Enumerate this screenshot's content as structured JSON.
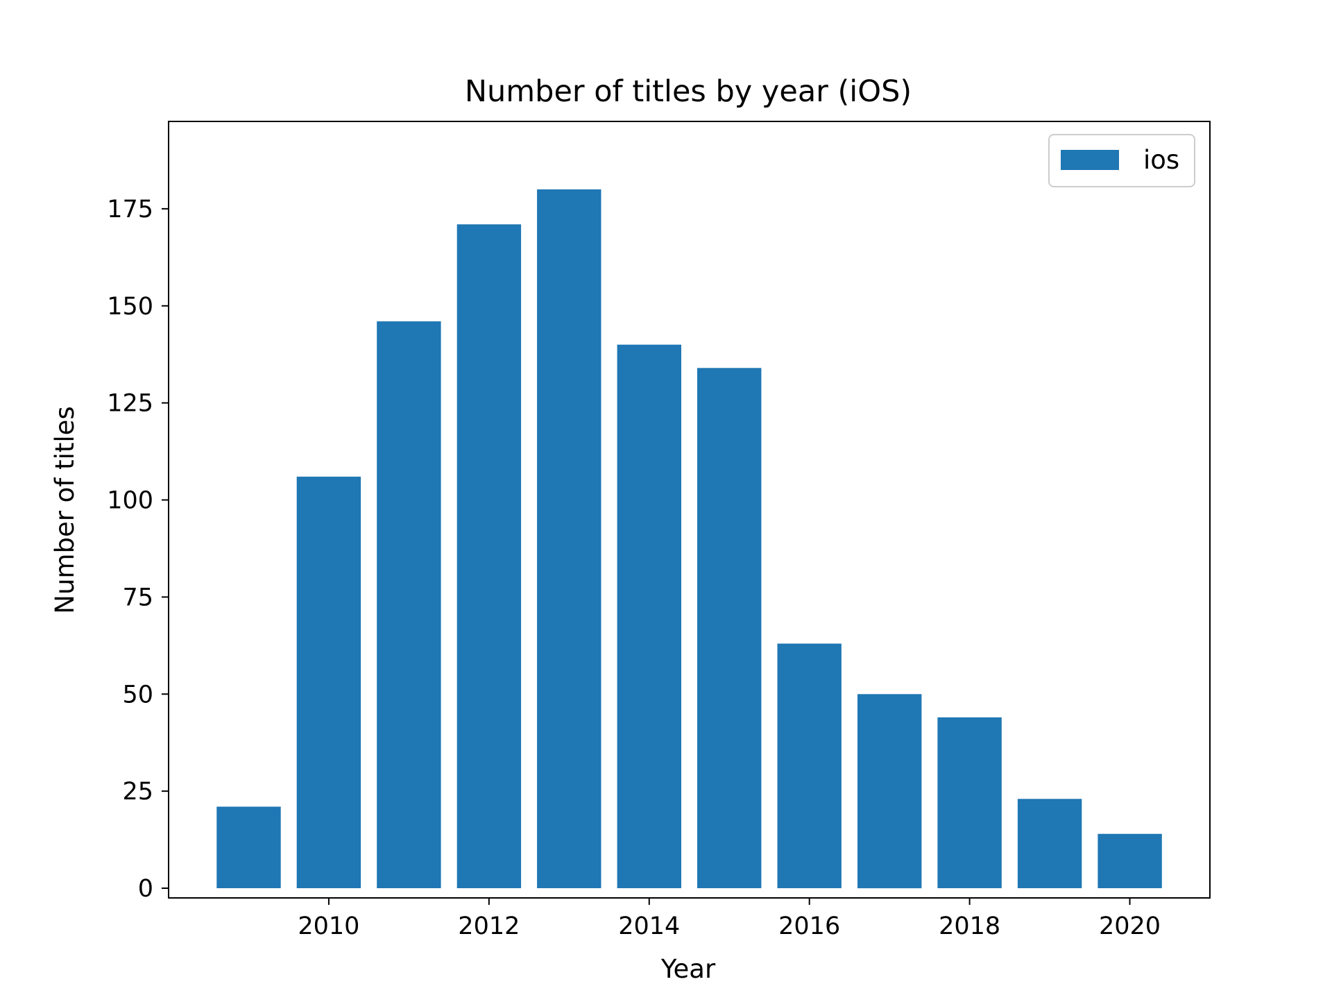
{
  "chart_data": {
    "type": "bar",
    "title": "Number of titles by year (iOS)",
    "xlabel": "Year",
    "ylabel": "Number of titles",
    "x": [
      2009,
      2010,
      2011,
      2012,
      2013,
      2014,
      2015,
      2016,
      2017,
      2018,
      2019,
      2020
    ],
    "series": [
      {
        "name": "ios",
        "color": "#1f77b4",
        "values": [
          21,
          106,
          146,
          171,
          180,
          140,
          134,
          63,
          50,
          44,
          23,
          14
        ]
      }
    ],
    "xlim": [
      2008.0,
      2021.0
    ],
    "ylim": [
      -2.5,
      197.5
    ],
    "xticks": [
      2010,
      2012,
      2014,
      2016,
      2018,
      2020
    ],
    "xtick_labels": [
      "2010",
      "2012",
      "2014",
      "2016",
      "2018",
      "2020"
    ],
    "yticks": [
      0,
      25,
      50,
      75,
      100,
      125,
      150,
      175
    ],
    "ytick_labels": [
      "0",
      "25",
      "50",
      "75",
      "100",
      "125",
      "150",
      "175"
    ],
    "grid": false,
    "legend_position": "upper right"
  }
}
